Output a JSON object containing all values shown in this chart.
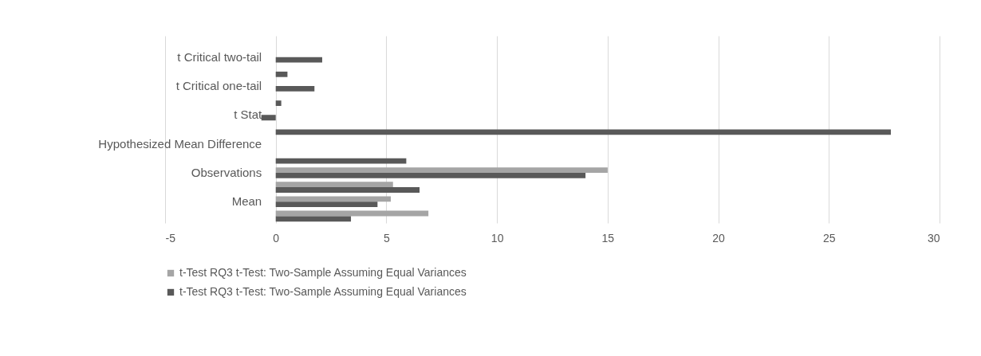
{
  "chart_data": {
    "type": "bar",
    "orientation": "horizontal",
    "categories": [
      null,
      "t Critical two-tail",
      null,
      "t Critical one-tail",
      null,
      "t Stat",
      null,
      "Hypothesized Mean Difference",
      null,
      "Observations",
      null,
      "Mean",
      null
    ],
    "series": [
      {
        "name": "t-Test RQ3 t-Test: Two-Sample Assuming Equal Variances",
        "color": "#a5a5a5",
        "values": [
          null,
          null,
          null,
          null,
          null,
          null,
          null,
          null,
          null,
          15,
          5.3,
          5.2,
          6.9
        ]
      },
      {
        "name": "t-Test RQ3 t-Test: Two-Sample Assuming Equal Variances",
        "color": "#595959",
        "values": [
          null,
          2.1,
          0.53,
          1.75,
          0.25,
          -0.65,
          27.8,
          null,
          5.9,
          14,
          6.5,
          4.6,
          3.4
        ]
      }
    ],
    "xlim": [
      -5,
      30
    ],
    "xticks": [
      -5,
      0,
      5,
      10,
      15,
      20,
      25,
      30
    ],
    "grid": "x",
    "legend": "bottom"
  }
}
